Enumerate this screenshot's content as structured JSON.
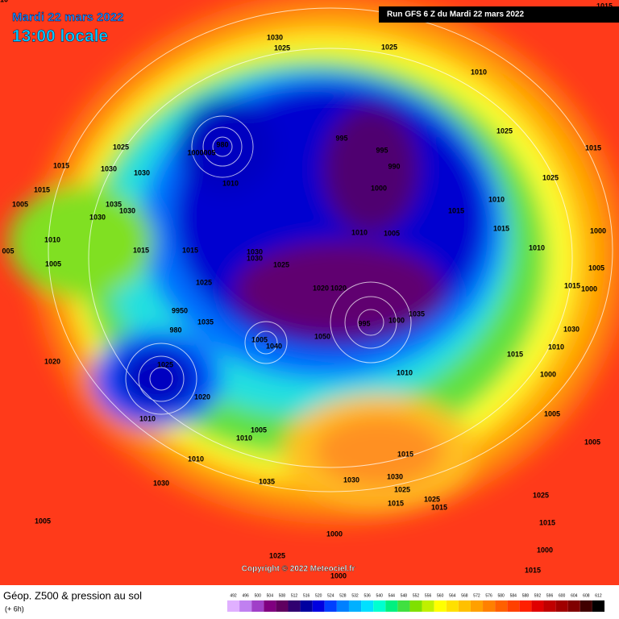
{
  "header": {
    "date": "Mardi 22 mars 2022",
    "time": "13:00 locale",
    "run": "Run GFS 6 Z du Mardi 22 mars 2022"
  },
  "map": {
    "isobar_labels": [
      "1030",
      "1025",
      "1025",
      "1010",
      "1025",
      "1015",
      "1025",
      "995",
      "995",
      "990",
      "980",
      "1000005",
      "1025",
      "1015",
      "1030",
      "1030",
      "1015",
      "1010",
      "1000",
      "1010",
      "1015",
      "1035",
      "1030",
      "1005",
      "1030",
      "1015",
      "1000",
      "1010",
      "1005",
      "1010",
      "1010",
      "1015",
      "1015",
      "1030",
      "1030",
      "1025",
      "1020",
      "005",
      "1005",
      "1005",
      "1025",
      "1020",
      "1015",
      "1000",
      "9950",
      "1035",
      "1035",
      "1000",
      "995",
      "980",
      "1030",
      "1005",
      "1040",
      "1050",
      "1010",
      "1015",
      "1020",
      "1025",
      "1000",
      "1010",
      "1020",
      "1010",
      "1005",
      "1005",
      "1010",
      "1005",
      "1010",
      "1015",
      "1035",
      "1030",
      "1030",
      "1030",
      "1025",
      "1025",
      "1015",
      "1015",
      "1025",
      "1005",
      "1015",
      "1000",
      "1000",
      "1025",
      "1015",
      "1000",
      "1015",
      "1010"
    ],
    "copyright": "Copyright © 2022 Meteociel.fr"
  },
  "footer": {
    "title": "Géop. Z500 & pression au sol",
    "lead": "(+ 6h)",
    "colorbar_labels": [
      492,
      496,
      500,
      504,
      508,
      512,
      516,
      520,
      524,
      528,
      532,
      536,
      540,
      544,
      548,
      552,
      556,
      560,
      564,
      568,
      572,
      576,
      580,
      584,
      588,
      592,
      596,
      600,
      604,
      608,
      612
    ],
    "colorbar_colors": [
      "#e0b0ff",
      "#c080f0",
      "#a040c8",
      "#800080",
      "#600060",
      "#300070",
      "#0000a0",
      "#0000e0",
      "#0040ff",
      "#0080ff",
      "#00b0ff",
      "#00e0ff",
      "#00ffd0",
      "#00f080",
      "#40e040",
      "#80e000",
      "#c0f000",
      "#ffff00",
      "#ffe000",
      "#ffc000",
      "#ffa000",
      "#ff8000",
      "#ff6000",
      "#ff4000",
      "#ff2000",
      "#e00000",
      "#c00000",
      "#a00000",
      "#800000",
      "#400000",
      "#000000"
    ]
  }
}
